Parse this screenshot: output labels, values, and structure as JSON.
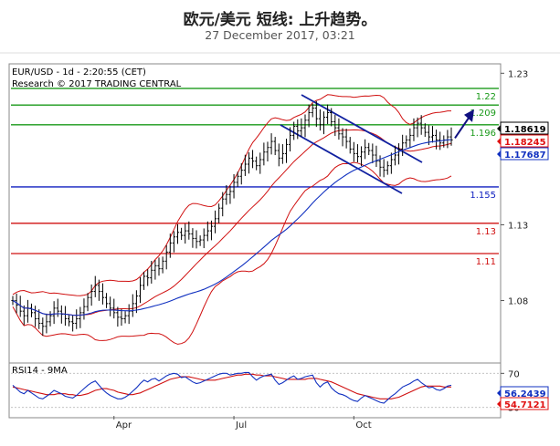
{
  "header": {
    "title": "欧元/美元 短线: 上升趋势。",
    "date": "27 December 2017, 03:21"
  },
  "chart_data": {
    "type": "candlestick",
    "symbol_info": "EUR/USD - 1d - 2:20:55 (CET)",
    "research": "Research © 2017 TRADING CENTRAL",
    "y_ticks": [
      "1.23",
      "1.13",
      "1.08"
    ],
    "ylim": [
      1.04,
      1.235
    ],
    "x_labels": [
      "Apr",
      "Jul",
      "Oct"
    ],
    "price_labels": [
      {
        "label": "1.18619",
        "value": 1.18619,
        "color": "#000000"
      },
      {
        "label": "1.18245",
        "value": 1.18245,
        "color": "#e01010"
      },
      {
        "label": "1.17687",
        "value": 1.17687,
        "color": "#1030c0"
      }
    ],
    "levels": [
      {
        "label": "1.22",
        "value": 1.22,
        "color": "#1a9a1a"
      },
      {
        "label": "1.209",
        "value": 1.209,
        "color": "#1a9a1a"
      },
      {
        "label": "1.196",
        "value": 1.196,
        "color": "#1a9a1a"
      },
      {
        "label": "1.155",
        "value": 1.155,
        "color": "#1020c0"
      },
      {
        "label": "1.13",
        "value": 1.131,
        "color": "#d01010"
      },
      {
        "label": "1.11",
        "value": 1.111,
        "color": "#d01010"
      }
    ],
    "close": [
      1.08,
      1.077,
      1.073,
      1.07,
      1.075,
      1.072,
      1.068,
      1.065,
      1.063,
      1.066,
      1.07,
      1.075,
      1.073,
      1.071,
      1.068,
      1.066,
      1.065,
      1.068,
      1.072,
      1.076,
      1.082,
      1.086,
      1.09,
      1.086,
      1.082,
      1.078,
      1.075,
      1.072,
      1.069,
      1.068,
      1.07,
      1.073,
      1.078,
      1.083,
      1.09,
      1.096,
      1.095,
      1.1,
      1.103,
      1.101,
      1.106,
      1.112,
      1.118,
      1.122,
      1.125,
      1.123,
      1.126,
      1.124,
      1.121,
      1.119,
      1.12,
      1.123,
      1.126,
      1.129,
      1.134,
      1.141,
      1.147,
      1.15,
      1.152,
      1.158,
      1.162,
      1.166,
      1.17,
      1.174,
      1.172,
      1.169,
      1.173,
      1.178,
      1.181,
      1.185,
      1.179,
      1.174,
      1.177,
      1.183,
      1.189,
      1.195,
      1.192,
      1.194,
      1.199,
      1.204,
      1.207,
      1.2,
      1.196,
      1.201,
      1.204,
      1.198,
      1.194,
      1.19,
      1.188,
      1.185,
      1.18,
      1.177,
      1.175,
      1.178,
      1.181,
      1.179,
      1.176,
      1.172,
      1.168,
      1.166,
      1.169,
      1.173,
      1.176,
      1.18,
      1.184,
      1.186,
      1.189,
      1.194,
      1.197,
      1.194,
      1.191,
      1.188,
      1.189,
      1.186,
      1.184,
      1.186,
      1.188,
      1.186
    ],
    "rsi": [
      56,
      52,
      48,
      46,
      50,
      47,
      44,
      41,
      40,
      43,
      46,
      50,
      48,
      46,
      43,
      42,
      41,
      44,
      48,
      52,
      56,
      59,
      61,
      56,
      51,
      47,
      44,
      42,
      40,
      40,
      42,
      45,
      49,
      53,
      58,
      62,
      60,
      63,
      64,
      61,
      64,
      67,
      69,
      70,
      69,
      65,
      66,
      63,
      60,
      58,
      59,
      61,
      63,
      65,
      67,
      69,
      70,
      70,
      68,
      69,
      70,
      70,
      71,
      71,
      66,
      62,
      65,
      67,
      68,
      69,
      62,
      57,
      59,
      62,
      65,
      67,
      63,
      64,
      66,
      67,
      68,
      59,
      54,
      58,
      60,
      53,
      49,
      46,
      45,
      43,
      40,
      38,
      37,
      41,
      44,
      42,
      40,
      38,
      36,
      35,
      39,
      43,
      46,
      50,
      54,
      56,
      58,
      61,
      63,
      59,
      56,
      53,
      54,
      51,
      50,
      52,
      55,
      56
    ],
    "rsi_ma": [
      54,
      53,
      52,
      51,
      50,
      49,
      48,
      47,
      46,
      45,
      45,
      45,
      46,
      46,
      46,
      45,
      45,
      44,
      44,
      45,
      46,
      48,
      50,
      51,
      52,
      52,
      51,
      50,
      48,
      47,
      46,
      45,
      45,
      46,
      47,
      49,
      51,
      53,
      55,
      57,
      59,
      61,
      63,
      64,
      65,
      66,
      66,
      66,
      65,
      64,
      63,
      62,
      62,
      62,
      62,
      63,
      64,
      65,
      66,
      67,
      68,
      68,
      69,
      69,
      69,
      68,
      68,
      67,
      67,
      67,
      66,
      65,
      64,
      63,
      63,
      63,
      63,
      63,
      63,
      64,
      64,
      64,
      63,
      62,
      61,
      60,
      58,
      56,
      54,
      52,
      50,
      48,
      46,
      45,
      44,
      43,
      42,
      41,
      40,
      40,
      40,
      40,
      41,
      42,
      44,
      46,
      48,
      50,
      52,
      54,
      55,
      55,
      55,
      55,
      55,
      54,
      54,
      54
    ],
    "rsi_label": "RSI14 - 9MA",
    "rsi_ticks": [
      "70",
      "30"
    ],
    "rsi_ylim": [
      20,
      80
    ],
    "rsi_value_labels": [
      {
        "label": "56.2439",
        "color": "#1030c0"
      },
      {
        "label": "54.7121",
        "color": "#e01010"
      }
    ],
    "arrow": {
      "from_index": 117,
      "to_value": 1.205
    }
  }
}
